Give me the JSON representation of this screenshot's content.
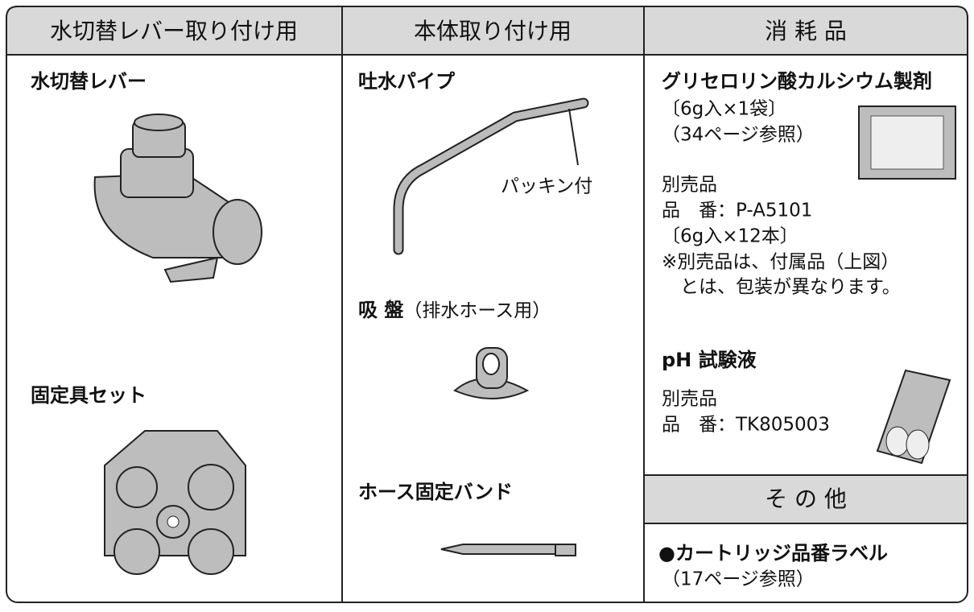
{
  "headers": [
    "水切替レバー取り付け用",
    "本体取り付け用",
    "消 耗 品",
    "そ の 他"
  ],
  "lever": {
    "title": "水切替レバー",
    "fixture": "固定具セット"
  },
  "body": {
    "pipe": "吐水パイプ",
    "packing": "パッキン付",
    "sucker": "吸 盤",
    "sucker_note": "（排水ホース用）",
    "band": "ホース固定バンド"
  },
  "consumables": {
    "glycero": {
      "title": "グリセロリン酸カルシウム製剤",
      "lines": [
        "〔6g入×1袋〕",
        "（34ページ参照）",
        "別売品",
        "品　番：P-A5101",
        "〔6g入×12本〕",
        "※別売品は、付属品（上図）",
        "　とは、包装が異なります。"
      ]
    },
    "ph": {
      "title": "pH 試験液",
      "lines": [
        "別売品",
        "品　番：TK805003"
      ]
    }
  },
  "other": {
    "title": "●カートリッジ品番ラベル",
    "note": "（17ページ参照）"
  }
}
